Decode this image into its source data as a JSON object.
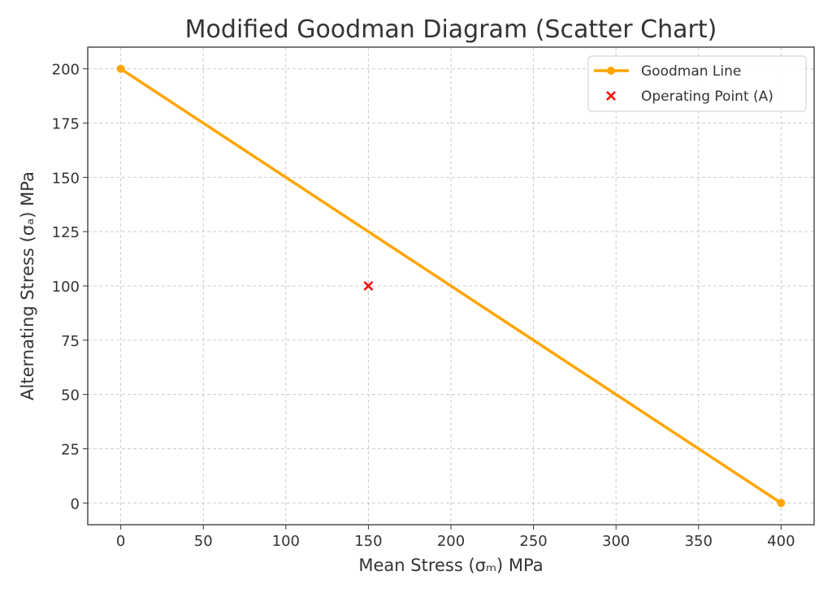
{
  "chart_data": {
    "type": "scatter",
    "title": "Modified Goodman Diagram (Scatter Chart)",
    "xlabel": "Mean Stress (σₘ) MPa",
    "ylabel": "Alternating Stress (σₐ) MPa",
    "xlim": [
      -20,
      420
    ],
    "ylim": [
      -10,
      210
    ],
    "xticks": [
      0,
      50,
      100,
      150,
      200,
      250,
      300,
      350,
      400
    ],
    "yticks": [
      0,
      25,
      50,
      75,
      100,
      125,
      150,
      175,
      200
    ],
    "grid": true,
    "legend_position": "top-right",
    "series": [
      {
        "name": "Goodman Line",
        "kind": "line-marker",
        "color": "#FFA500",
        "x": [
          0,
          400
        ],
        "y": [
          200,
          0
        ]
      },
      {
        "name": "Operating Point (A)",
        "kind": "x-marker",
        "color": "#FF0000",
        "x": [
          150
        ],
        "y": [
          100
        ]
      }
    ]
  }
}
